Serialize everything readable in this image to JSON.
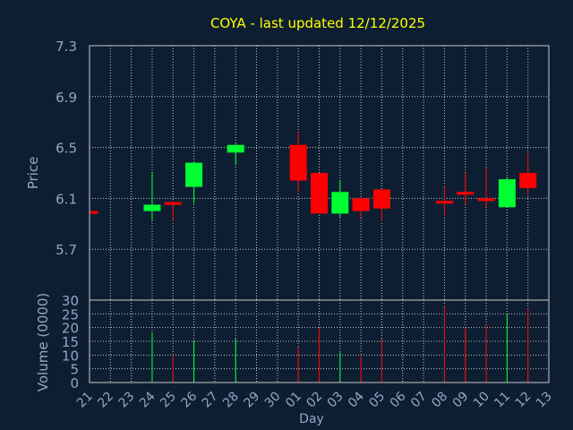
{
  "chart_data": {
    "type": "candlestick",
    "title": "COYA - last updated 12/12/2025",
    "xlabel": "Day",
    "price_panel": {
      "ylabel": "Price",
      "ylim": [
        5.3,
        7.3
      ],
      "yticks": [
        "5.7",
        "6.1",
        "6.5",
        "6.9",
        "7.3"
      ],
      "grid": true
    },
    "volume_panel": {
      "ylabel": "Volume (0000)",
      "ylim": [
        0,
        30
      ],
      "yticks": [
        "0",
        "5",
        "10",
        "15",
        "20",
        "25",
        "30"
      ],
      "grid": true
    },
    "x_labels": [
      "21",
      "22",
      "23",
      "24",
      "25",
      "26",
      "27",
      "28",
      "29",
      "30",
      "01",
      "02",
      "03",
      "04",
      "05",
      "06",
      "07",
      "08",
      "09",
      "10",
      "11",
      "12",
      "13"
    ],
    "candles": [
      {
        "x": "21",
        "open": 6.0,
        "high": 6.0,
        "low": 5.99,
        "close": 5.99,
        "volume": 0
      },
      {
        "x": "24",
        "open": 6.0,
        "high": 6.3,
        "low": 5.93,
        "close": 6.05,
        "volume": 18
      },
      {
        "x": "25",
        "open": 6.07,
        "high": 6.08,
        "low": 5.92,
        "close": 6.05,
        "volume": 10
      },
      {
        "x": "26",
        "open": 6.19,
        "high": 6.39,
        "low": 6.06,
        "close": 6.38,
        "volume": 15
      },
      {
        "x": "28",
        "open": 6.46,
        "high": 6.53,
        "low": 6.36,
        "close": 6.52,
        "volume": 16
      },
      {
        "x": "01",
        "open": 6.52,
        "high": 6.62,
        "low": 6.15,
        "close": 6.24,
        "volume": 13
      },
      {
        "x": "02",
        "open": 6.3,
        "high": 6.3,
        "low": 5.98,
        "close": 5.98,
        "volume": 20
      },
      {
        "x": "03",
        "open": 5.98,
        "high": 6.24,
        "low": 5.95,
        "close": 6.15,
        "volume": 11
      },
      {
        "x": "04",
        "open": 6.1,
        "high": 6.11,
        "low": 5.95,
        "close": 6.0,
        "volume": 10
      },
      {
        "x": "05",
        "open": 6.17,
        "high": 6.17,
        "low": 5.92,
        "close": 6.02,
        "volume": 16
      },
      {
        "x": "08",
        "open": 6.08,
        "high": 6.2,
        "low": 5.96,
        "close": 6.06,
        "volume": 28
      },
      {
        "x": "09",
        "open": 6.15,
        "high": 6.3,
        "low": 6.05,
        "close": 6.13,
        "volume": 20
      },
      {
        "x": "10",
        "open": 6.1,
        "high": 6.34,
        "low": 6.03,
        "close": 6.08,
        "volume": 21
      },
      {
        "x": "11",
        "open": 6.03,
        "high": 6.27,
        "low": 6.03,
        "close": 6.25,
        "volume": 25
      },
      {
        "x": "12",
        "open": 6.3,
        "high": 6.45,
        "low": 6.13,
        "close": 6.18,
        "volume": 27
      }
    ],
    "colors": {
      "background": "#0e1e32",
      "up": "#00ff33",
      "down": "#ff0000",
      "title": "#ffff00",
      "axis_text": "#8fa7c7",
      "grid": "#c8c8c8",
      "frame": "#c8c8c8"
    }
  }
}
